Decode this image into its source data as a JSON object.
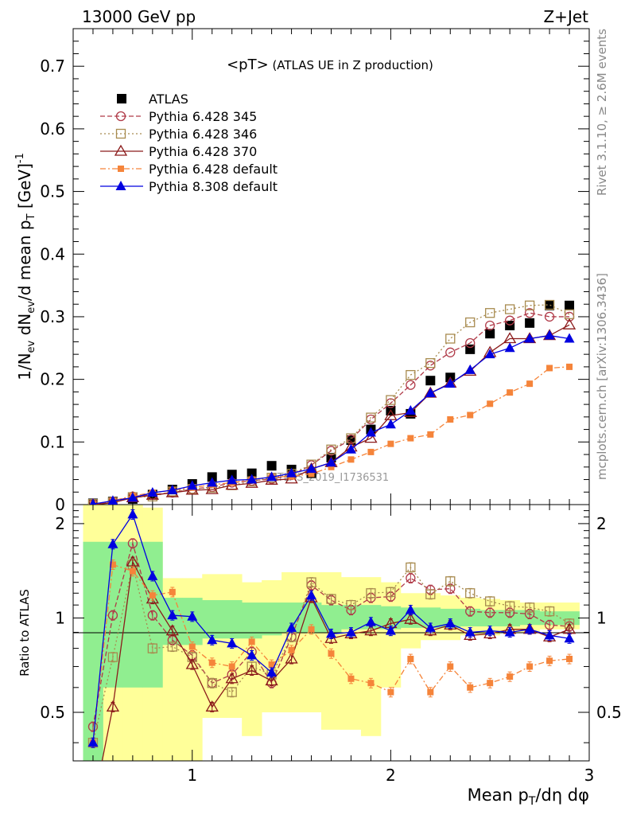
{
  "header": {
    "left": "13000 GeV pp",
    "right": "Z+Jet"
  },
  "side": {
    "rivet": "Rivet 3.1.10, ≥ 2.6M events",
    "mcplots": "mcplots.cern.ch [arXiv:1306.3436]"
  },
  "chart_data": {
    "type": "scatter",
    "title": "<pT> (ATLAS UE in Z production)",
    "title_main": "<pT>",
    "title_sub": " (ATLAS UE in Z production)",
    "xlabel": "Mean p_T/dη dφ",
    "ylabel": "1/N_ev dN_ev/d mean p_T [GeV]^-1",
    "ratio_ylabel": "Ratio to ATLAS",
    "watermark": "ATLAS_2019_I1736531",
    "xlim": [
      0.4,
      3.0
    ],
    "ylim": [
      0,
      0.76
    ],
    "ratio_ylim": [
      0.35,
      2.3
    ],
    "xticks": [
      "1",
      "2",
      "3"
    ],
    "yticks": [
      "0",
      "0.1",
      "0.2",
      "0.3",
      "0.4",
      "0.5",
      "0.6",
      "0.7"
    ],
    "ratio_yticks": [
      "0.5",
      "1",
      "2"
    ],
    "legend_position": "top-left",
    "x": [
      0.5,
      0.6,
      0.7,
      0.8,
      0.9,
      1.0,
      1.1,
      1.2,
      1.3,
      1.4,
      1.5,
      1.6,
      1.7,
      1.8,
      1.9,
      2.0,
      2.1,
      2.2,
      2.3,
      2.4,
      2.5,
      2.6,
      2.7,
      2.8,
      2.9
    ],
    "band_inner": {
      "color": "#90ee90",
      "lo": [
        0.35,
        0.6,
        0.6,
        0.6,
        0.82,
        0.82,
        0.86,
        0.86,
        0.86,
        0.88,
        0.9,
        0.9,
        0.9,
        0.92,
        0.92,
        0.92,
        0.93,
        0.93,
        0.93,
        0.94,
        0.94,
        0.94,
        0.95,
        0.95,
        0.95
      ],
      "hi": [
        1.75,
        1.75,
        1.75,
        1.75,
        1.16,
        1.16,
        1.14,
        1.14,
        1.12,
        1.12,
        1.12,
        1.12,
        1.1,
        1.1,
        1.1,
        1.09,
        1.08,
        1.08,
        1.07,
        1.07,
        1.06,
        1.06,
        1.06,
        1.05,
        1.05
      ]
    },
    "band_outer": {
      "color": "#ffff99",
      "lo": [
        0.35,
        0.35,
        0.35,
        0.35,
        0.35,
        0.35,
        0.48,
        0.48,
        0.42,
        0.5,
        0.5,
        0.5,
        0.44,
        0.44,
        0.42,
        0.6,
        0.8,
        0.85,
        0.85,
        0.88,
        0.88,
        0.9,
        0.9,
        0.92,
        0.92
      ],
      "hi": [
        2.3,
        2.3,
        2.3,
        2.25,
        1.34,
        1.34,
        1.38,
        1.38,
        1.3,
        1.32,
        1.4,
        1.4,
        1.4,
        1.35,
        1.35,
        1.3,
        1.2,
        1.2,
        1.18,
        1.16,
        1.15,
        1.14,
        1.12,
        1.12,
        1.12
      ]
    },
    "series": [
      {
        "name": "ATLAS",
        "color": "#000000",
        "style": "data",
        "marker": "square-filled",
        "values": [
          0.002,
          0.005,
          0.009,
          0.016,
          0.024,
          0.033,
          0.044,
          0.048,
          0.05,
          0.062,
          0.056,
          0.05,
          0.075,
          0.103,
          0.12,
          0.15,
          0.145,
          0.198,
          0.203,
          0.248,
          0.273,
          0.286,
          0.29,
          0.318,
          0.318
        ],
        "ratio": [
          1,
          1,
          1,
          1,
          1,
          1,
          1,
          1,
          1,
          1,
          1,
          1,
          1,
          1,
          1,
          1,
          1,
          1,
          1,
          1,
          1,
          1,
          1,
          1,
          1
        ]
      },
      {
        "name": "Pythia 6.428 345",
        "color": "#b03a48",
        "dash": "6,3",
        "marker": "circle-open",
        "values": [
          0.001,
          0.005,
          0.013,
          0.016,
          0.019,
          0.025,
          0.028,
          0.035,
          0.038,
          0.041,
          0.047,
          0.063,
          0.086,
          0.104,
          0.136,
          0.162,
          0.191,
          0.222,
          0.243,
          0.258,
          0.286,
          0.294,
          0.306,
          0.3,
          0.3
        ],
        "ratio": [
          0.45,
          1.02,
          1.73,
          1.02,
          0.85,
          0.76,
          0.62,
          0.66,
          0.78,
          0.62,
          0.87,
          1.27,
          1.14,
          1.06,
          1.16,
          1.17,
          1.34,
          1.23,
          1.24,
          1.05,
          1.04,
          1.04,
          1.03,
          0.95,
          0.94
        ]
      },
      {
        "name": "Pythia 6.428 346",
        "color": "#a88b4f",
        "dash": "2,3",
        "marker": "square-open",
        "values": [
          0.001,
          0.004,
          0.012,
          0.013,
          0.021,
          0.025,
          0.027,
          0.031,
          0.037,
          0.043,
          0.049,
          0.064,
          0.088,
          0.106,
          0.139,
          0.167,
          0.207,
          0.226,
          0.265,
          0.291,
          0.306,
          0.312,
          0.318,
          0.319,
          0.304
        ],
        "ratio": [
          0.4,
          0.75,
          1.48,
          0.8,
          0.81,
          0.75,
          0.62,
          0.58,
          0.7,
          0.66,
          0.87,
          1.3,
          1.15,
          1.1,
          1.2,
          1.21,
          1.45,
          1.19,
          1.31,
          1.2,
          1.13,
          1.09,
          1.08,
          1.05,
          0.96
        ]
      },
      {
        "name": "Pythia 6.428 370",
        "color": "#8b1a1a",
        "dash": "",
        "marker": "triangle-open",
        "values": [
          0.0,
          0.003,
          0.011,
          0.015,
          0.019,
          0.023,
          0.024,
          0.031,
          0.034,
          0.039,
          0.041,
          0.057,
          0.067,
          0.092,
          0.106,
          0.142,
          0.147,
          0.178,
          0.194,
          0.213,
          0.243,
          0.265,
          0.265,
          0.27,
          0.287
        ],
        "ratio": [
          0.25,
          0.52,
          1.51,
          1.15,
          0.91,
          0.71,
          0.52,
          0.64,
          0.68,
          0.63,
          0.74,
          1.16,
          0.86,
          0.89,
          0.91,
          0.96,
          0.99,
          0.91,
          0.95,
          0.88,
          0.89,
          0.92,
          0.92,
          0.87,
          0.92
        ]
      },
      {
        "name": "Pythia 6.428 default",
        "color": "#f5843a",
        "dash": "7,3,2,3",
        "marker": "square-filled-small",
        "values": [
          0.001,
          0.006,
          0.014,
          0.019,
          0.023,
          0.027,
          0.032,
          0.035,
          0.04,
          0.044,
          0.045,
          0.049,
          0.06,
          0.072,
          0.084,
          0.097,
          0.106,
          0.112,
          0.136,
          0.143,
          0.161,
          0.179,
          0.193,
          0.218,
          0.22
        ],
        "ratio": [
          0.4,
          1.48,
          1.41,
          1.18,
          1.21,
          0.81,
          0.72,
          0.7,
          0.84,
          0.71,
          0.79,
          0.92,
          0.77,
          0.64,
          0.62,
          0.58,
          0.74,
          0.58,
          0.7,
          0.6,
          0.62,
          0.65,
          0.7,
          0.73,
          0.74
        ]
      },
      {
        "name": "Pythia 8.308 default",
        "color": "#0000e0",
        "dash": "",
        "marker": "triangle-filled",
        "values": [
          0.001,
          0.006,
          0.011,
          0.019,
          0.023,
          0.03,
          0.035,
          0.039,
          0.04,
          0.044,
          0.05,
          0.057,
          0.067,
          0.088,
          0.115,
          0.128,
          0.15,
          0.178,
          0.193,
          0.215,
          0.24,
          0.25,
          0.265,
          0.27,
          0.265
        ],
        "ratio": [
          0.4,
          1.72,
          2.14,
          1.36,
          1.02,
          1.01,
          0.85,
          0.83,
          0.76,
          0.67,
          0.93,
          1.18,
          0.89,
          0.9,
          0.97,
          0.91,
          1.06,
          0.93,
          0.96,
          0.9,
          0.91,
          0.9,
          0.92,
          0.88,
          0.86
        ]
      }
    ]
  }
}
